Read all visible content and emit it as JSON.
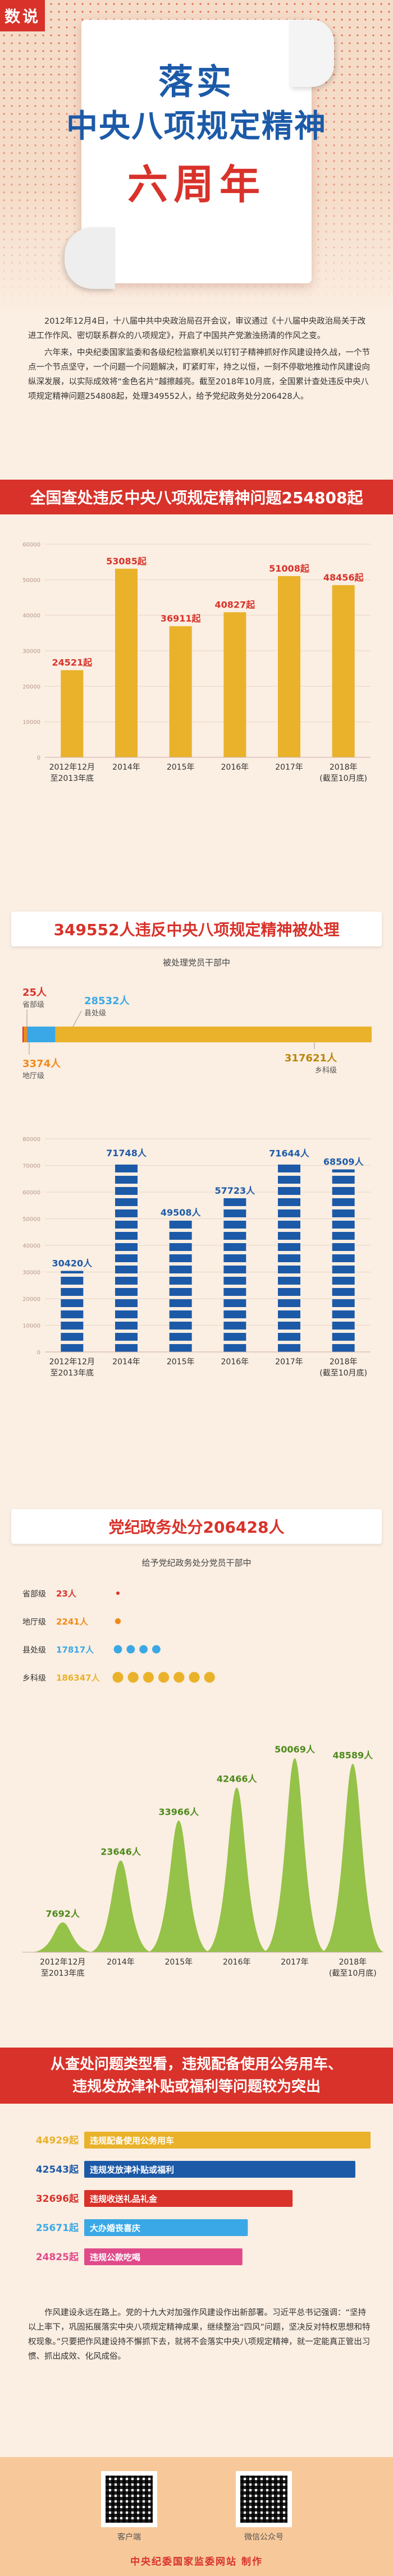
{
  "header": {
    "tag": "数说",
    "title_line1": "落实",
    "title_line2": "中央八项规定精神",
    "title_line3": "六周年"
  },
  "intro": {
    "p1": "2012年12月4日，十八届中共中央政治局召开会议，审议通过《十八届中央政治局关于改进工作作风、密切联系群众的八项规定》，开启了中国共产党激浊扬清的作风之变。",
    "p2": "六年来，中央纪委国家监委和各级纪检监察机关以钉钉子精神抓好作风建设持久战，一个节点一个节点坚守，一个问题一个问题解决，盯紧盯牢，持之以恒，一刻不停歇地推动作风建设向纵深发展，以实际成效将“金色名片”越擦越亮。截至2018年10月底，全国累计查处违反中央八项规定精神问题254808起，处理349552人，给予党纪政务处分206428人。"
  },
  "section1": {
    "title": "全国查处违反中央八项规定精神问题254808起"
  },
  "section2": {
    "title": "349552人违反中央八项规定精神被处理",
    "subtitle": "被处理党员干部中"
  },
  "section3": {
    "title": "党纪政务处分206428人",
    "subtitle": "给予党纪政务处分党员干部中"
  },
  "section4": {
    "title_line1": "从查处问题类型看，违规配备使用公务用车、",
    "title_line2": "违规发放津补贴或福利等问题较为突出"
  },
  "outro": {
    "p1": "作风建设永远在路上。党的十九大对加强作风建设作出新部署。习近平总书记强调：“坚持以上率下，巩固拓展落实中央八项规定精神成果，继续整治“四风”问题，坚决反对特权思想和特权现象。”只要把作风建设持不懈抓下去，就将不会落实中央八项规定精神，就一定能真正管出习惯、抓出成效、化风成俗。"
  },
  "footer": {
    "qr1_label": "客户端",
    "qr2_label": "微信公众号",
    "credit": "中央纪委国家监委网站  制作"
  },
  "colors": {
    "red": "#d8322a",
    "gold": "#e9b22a",
    "blue": "#1c5aa8",
    "green": "#8fbf3f",
    "orange": "#f08a1a",
    "sky": "#3aa8e6",
    "pink": "#e04a8a"
  },
  "chart_data": [
    {
      "type": "bar",
      "categories": [
        "2012年12月至2013年底",
        "2014年",
        "2015年",
        "2016年",
        "2017年",
        "2018年(截至10月底)"
      ],
      "values": [
        24521,
        53085,
        36911,
        40827,
        51008,
        48456
      ],
      "value_labels": [
        "24521起",
        "53085起",
        "36911起",
        "40827起",
        "51008起",
        "48456起"
      ],
      "ylim": [
        0,
        60000
      ],
      "yticks": [
        "0",
        "10000",
        "20000",
        "30000",
        "40000",
        "50000",
        "60000"
      ]
    },
    {
      "type": "bar",
      "stacked": true,
      "categories": [
        "被处理党员干部"
      ],
      "series": [
        {
          "name": "省部级",
          "values": [
            25
          ],
          "label": "25人"
        },
        {
          "name": "地厅级",
          "values": [
            3374
          ],
          "label": "3374人"
        },
        {
          "name": "县处级",
          "values": [
            28532
          ],
          "label": "28532人"
        },
        {
          "name": "乡科级",
          "values": [
            317621
          ],
          "label": "317621人"
        }
      ]
    },
    {
      "type": "bar",
      "categories": [
        "2012年12月至2013年底",
        "2014年",
        "2015年",
        "2016年",
        "2017年",
        "2018年(截至10月底)"
      ],
      "values": [
        30420,
        71748,
        49508,
        57723,
        71644,
        68509
      ],
      "value_labels": [
        "30420人",
        "71748人",
        "49508人",
        "57723人",
        "71644人",
        "68509人"
      ],
      "ylim": [
        0,
        80000
      ],
      "yticks": [
        "0",
        "10000",
        "20000",
        "30000",
        "40000",
        "50000",
        "60000",
        "70000",
        "80000"
      ]
    },
    {
      "type": "scatter",
      "categories": [
        "省部级",
        "地厅级",
        "县处级",
        "乡科级"
      ],
      "values": [
        23,
        2241,
        17817,
        186347
      ],
      "value_labels": [
        "23人",
        "2241人",
        "17817人",
        "186347人"
      ]
    },
    {
      "type": "area",
      "categories": [
        "2012年12月至2013年底",
        "2014年",
        "2015年",
        "2016年",
        "2017年",
        "2018年(截至10月底)"
      ],
      "values": [
        7692,
        23646,
        33966,
        42466,
        50069,
        48589
      ],
      "value_labels": [
        "7692人",
        "23646人",
        "33966人",
        "42466人",
        "50069人",
        "48589人"
      ],
      "ylim": [
        0,
        55000
      ]
    },
    {
      "type": "bar",
      "orientation": "horizontal",
      "categories": [
        "违规配备使用公务用车",
        "违规发放津补贴或福利",
        "违规收送礼品礼金",
        "大办婚丧喜庆",
        "违规公款吃喝"
      ],
      "values": [
        44929,
        42543,
        32696,
        25671,
        24825
      ],
      "value_labels": [
        "44929起",
        "42543起",
        "32696起",
        "25671起",
        "24825起"
      ]
    }
  ]
}
